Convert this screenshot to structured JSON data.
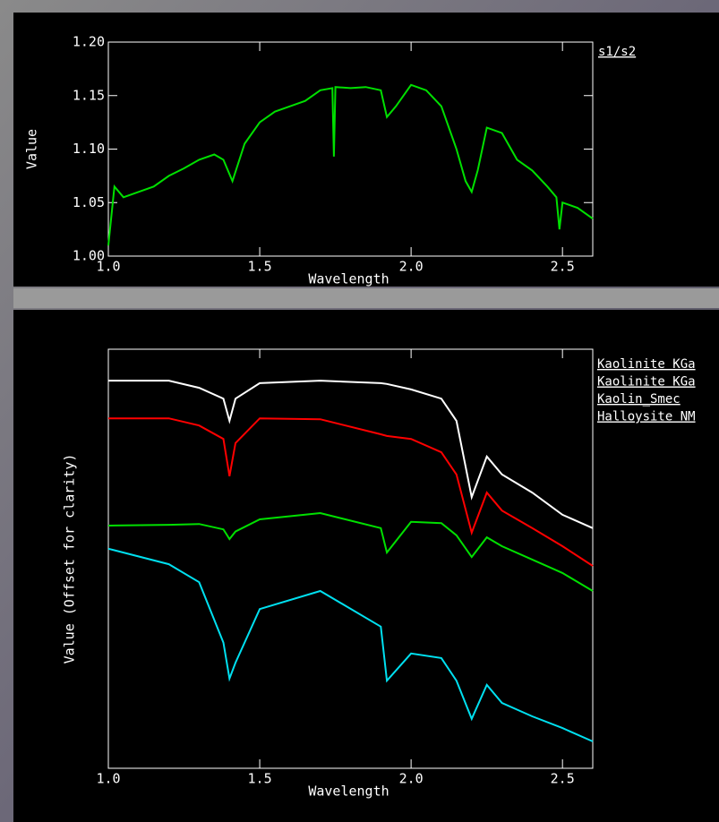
{
  "chart_data": [
    {
      "type": "line",
      "xlabel": "Wavelength",
      "ylabel": "Value",
      "x": [
        1.0,
        1.02,
        1.05,
        1.1,
        1.15,
        1.2,
        1.25,
        1.3,
        1.35,
        1.38,
        1.41,
        1.45,
        1.5,
        1.55,
        1.6,
        1.65,
        1.7,
        1.74,
        1.745,
        1.75,
        1.8,
        1.85,
        1.9,
        1.92,
        1.95,
        2.0,
        2.05,
        2.1,
        2.15,
        2.18,
        2.2,
        2.22,
        2.25,
        2.3,
        2.35,
        2.4,
        2.45,
        2.48,
        2.49,
        2.5,
        2.55,
        2.6
      ],
      "series": [
        {
          "name": "s1/s2",
          "color": "#00e000",
          "values": [
            1.01,
            1.065,
            1.055,
            1.06,
            1.065,
            1.075,
            1.082,
            1.09,
            1.095,
            1.09,
            1.07,
            1.105,
            1.125,
            1.135,
            1.14,
            1.145,
            1.155,
            1.157,
            1.093,
            1.158,
            1.157,
            1.158,
            1.155,
            1.13,
            1.14,
            1.16,
            1.155,
            1.14,
            1.1,
            1.07,
            1.06,
            1.08,
            1.12,
            1.115,
            1.09,
            1.08,
            1.065,
            1.055,
            1.025,
            1.05,
            1.045,
            1.035
          ]
        }
      ],
      "xlim": [
        1.0,
        2.6
      ],
      "ylim": [
        1.0,
        1.2
      ],
      "xticks": [
        {
          "value": 1,
          "label": "1.0"
        },
        1.5,
        {
          "value": 2,
          "label": "2.0"
        },
        2.5
      ],
      "yticks": [
        {
          "value": 1,
          "label": "1.00"
        },
        1.05,
        {
          "value": 1.1,
          "label": "1.10"
        },
        1.15,
        {
          "value": 1.2,
          "label": "1.20"
        }
      ]
    },
    {
      "type": "line",
      "xlabel": "Wavelength",
      "ylabel": "Value (Offset for clarity)",
      "x": [
        1.0,
        1.2,
        1.3,
        1.38,
        1.4,
        1.42,
        1.5,
        1.7,
        1.9,
        1.92,
        2.0,
        2.1,
        2.15,
        2.2,
        2.25,
        2.3,
        2.4,
        2.5,
        2.6
      ],
      "series": [
        {
          "name": "Kaolinite KGa",
          "color": "#ffffff",
          "values": [
            92.5,
            92.5,
            90.8,
            88.2,
            82.9,
            88.2,
            91.9,
            92.5,
            91.9,
            91.7,
            90.4,
            88.2,
            82.9,
            64.7,
            74.4,
            70.1,
            65.8,
            60.5,
            57.3
          ]
        },
        {
          "name": "Kaolinite KGa",
          "color": "#ff0000",
          "values": [
            83.5,
            83.5,
            81.8,
            78.6,
            69.7,
            77.6,
            83.5,
            83.3,
            79.7,
            79.3,
            78.6,
            75.4,
            70.1,
            56.2,
            65.8,
            61.5,
            57.3,
            53.0,
            48.3
          ]
        },
        {
          "name": "Kaolin_Smec",
          "color": "#00e000",
          "values": [
            57.9,
            58.1,
            58.3,
            57.0,
            54.7,
            56.5,
            59.4,
            60.9,
            57.3,
            51.5,
            58.8,
            58.5,
            55.6,
            50.4,
            55.1,
            53.0,
            49.8,
            46.6,
            42.3
          ]
        },
        {
          "name": "Halloysite NM",
          "color": "#00e0f0",
          "values": [
            52.4,
            48.7,
            44.4,
            30.0,
            21.4,
            25.2,
            38.0,
            42.3,
            33.8,
            20.9,
            27.4,
            26.3,
            20.9,
            11.8,
            19.9,
            15.6,
            12.4,
            9.6,
            6.4
          ]
        }
      ],
      "xlim": [
        1.0,
        2.6
      ],
      "ylim": [
        0,
        100
      ],
      "xticks": [
        {
          "value": 1,
          "label": "1.0"
        },
        1.5,
        {
          "value": 2,
          "label": "2.0"
        },
        2.5
      ]
    }
  ]
}
